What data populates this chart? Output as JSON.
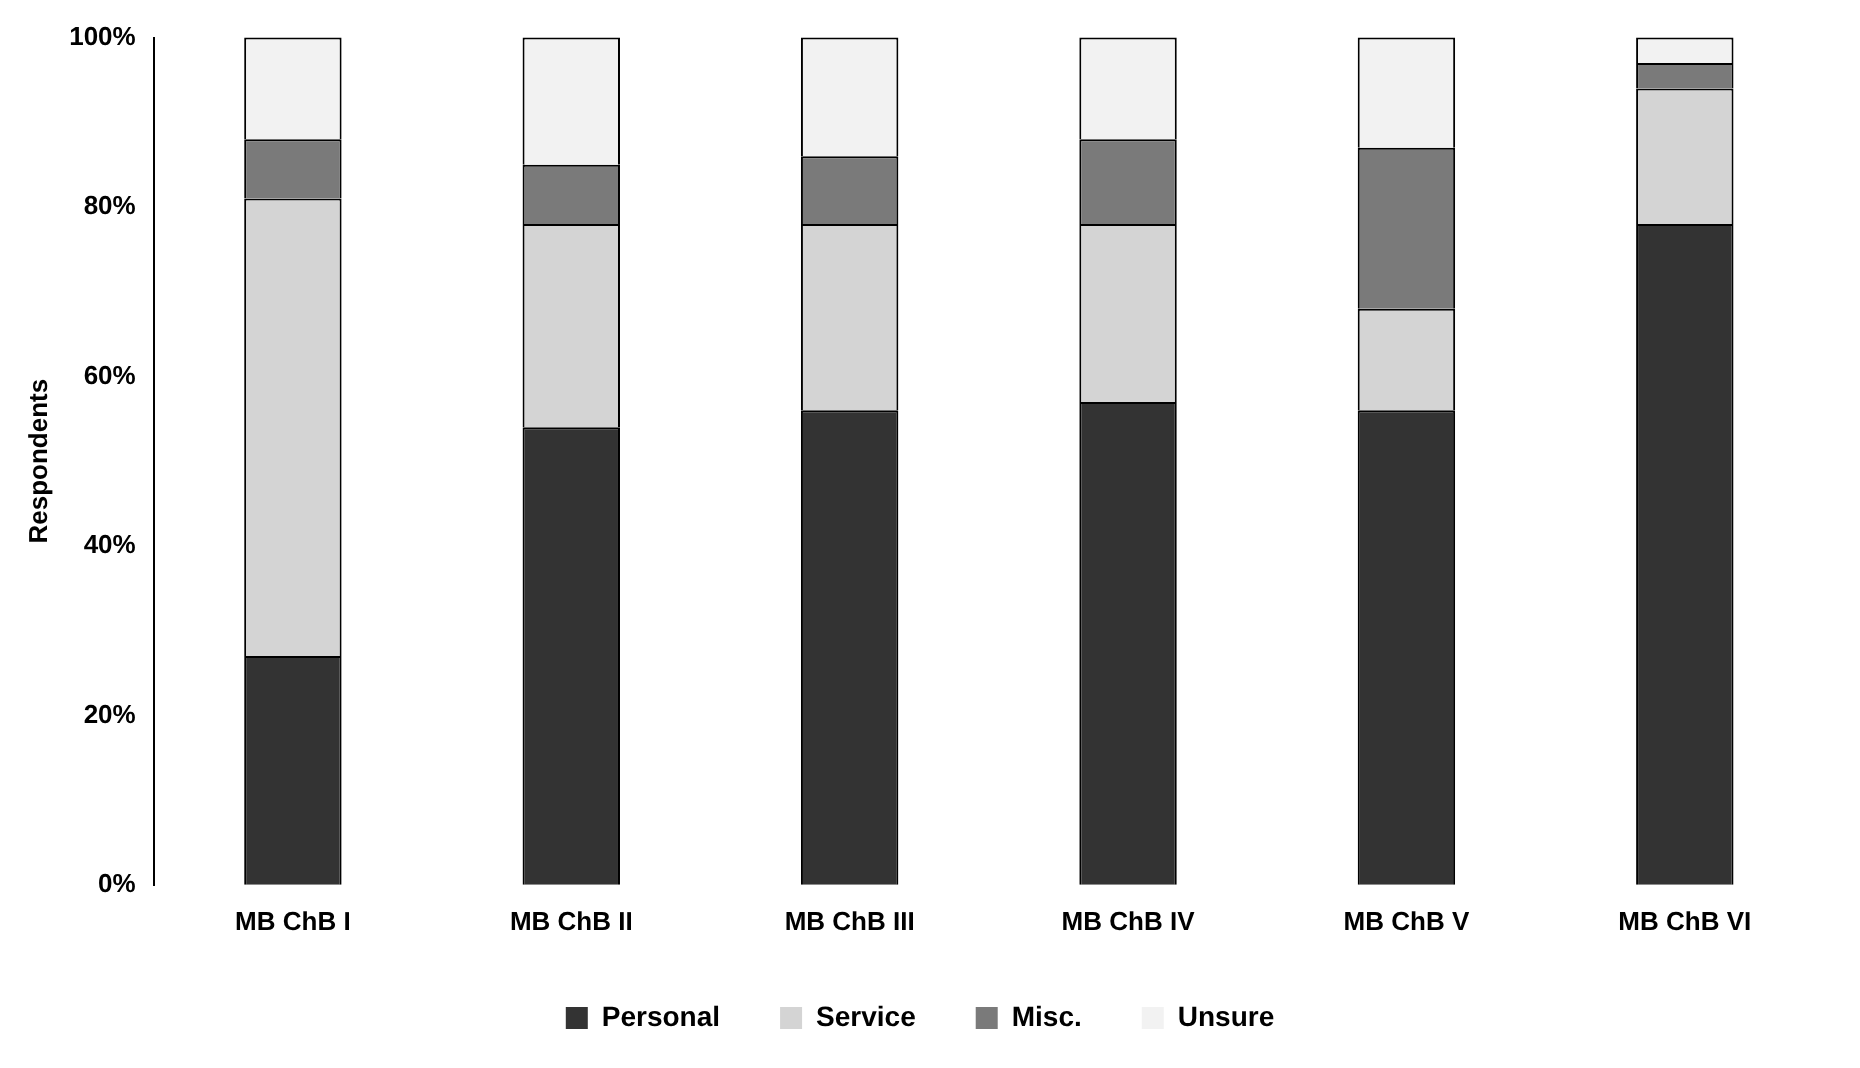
{
  "chart_data": {
    "type": "bar",
    "ylabel": "Respondents",
    "stacked": true,
    "categories": [
      "MB ChB I",
      "MB ChB II",
      "MB ChB III",
      "MB ChB IV",
      "MB ChB V",
      "MB ChB VI"
    ],
    "series": [
      {
        "name": "Personal",
        "color": "#333333",
        "values": [
          27,
          54,
          56,
          57,
          56,
          78
        ]
      },
      {
        "name": "Service",
        "color": "#d4d4d4",
        "values": [
          54,
          24,
          22,
          21,
          12,
          16
        ]
      },
      {
        "name": "Misc.",
        "color": "#7a7a7a",
        "values": [
          7,
          7,
          8,
          10,
          19,
          3
        ]
      },
      {
        "name": "Unsure",
        "color": "#f2f2f2",
        "values": [
          12,
          15,
          14,
          12,
          13,
          3
        ]
      }
    ],
    "ylim": [
      0,
      100
    ],
    "yticks": [
      {
        "value": 0,
        "label": "0%"
      },
      {
        "value": 20,
        "label": "20%"
      },
      {
        "value": 40,
        "label": "40%"
      },
      {
        "value": 60,
        "label": "60%"
      },
      {
        "value": 80,
        "label": "80%"
      },
      {
        "value": 100,
        "label": "100%"
      }
    ],
    "grid": false,
    "legend": "bottom"
  }
}
